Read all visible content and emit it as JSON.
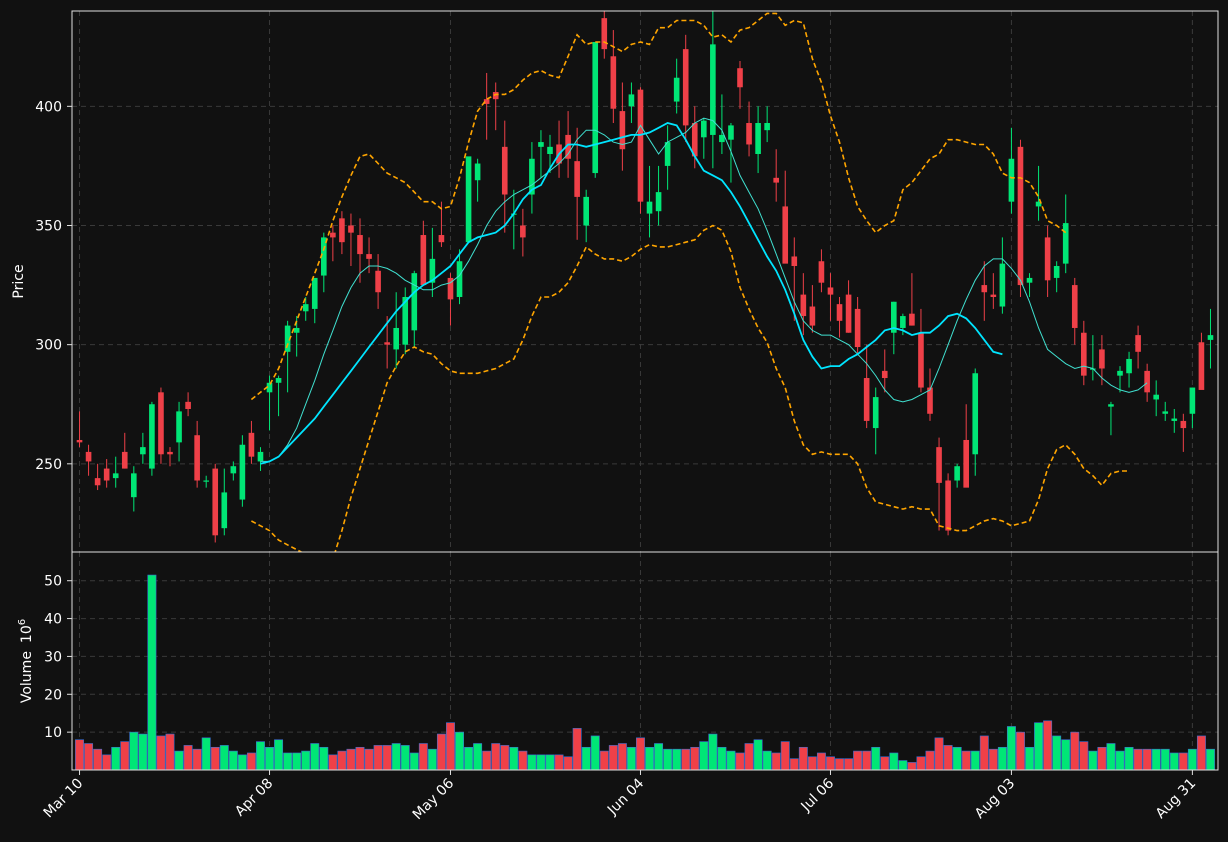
{
  "chart_data": {
    "type": "candlestick",
    "ylabel_price": "Price",
    "ylabel_volume": "Volume",
    "volume_exponent_label": "10",
    "volume_exponent_power": "6",
    "price_ylim": [
      213,
      440
    ],
    "price_yticks": [
      250,
      300,
      350,
      400
    ],
    "volume_ylim": [
      0,
      56
    ],
    "volume_yticks": [
      10,
      20,
      30,
      40,
      50
    ],
    "x_tick_labels": [
      {
        "label": "Mar 10",
        "index": 0
      },
      {
        "label": "Apr 08",
        "index": 21
      },
      {
        "label": "May 06",
        "index": 41
      },
      {
        "label": "Jun 04",
        "index": 62
      },
      {
        "label": "Jul 06",
        "index": 83
      },
      {
        "label": "Aug 03",
        "index": 103
      },
      {
        "label": "Aug 31",
        "index": 123
      }
    ],
    "grid": true,
    "colors": {
      "background": "#111111",
      "up": "#00e676",
      "down": "#ef4048",
      "ma_fast": "#40e0d0",
      "ma_slow": "#00e5ff",
      "bollinger": "#ffa500",
      "grid": "#3a3a3a",
      "axis": "#e0e0e0",
      "text": "#ffffff"
    },
    "series": [
      {
        "name": "",
        "kind": "ma_fast",
        "start": 20,
        "values": [
          251,
          251,
          253,
          258,
          265,
          275,
          285,
          296,
          306,
          316,
          324,
          330,
          333,
          333,
          332,
          330,
          327,
          325,
          323,
          323,
          325,
          326,
          329,
          335,
          342,
          350,
          356,
          360,
          363,
          365,
          367,
          370,
          373,
          376,
          380,
          386,
          390,
          390,
          388,
          385,
          384,
          385,
          392,
          386,
          380,
          385,
          387,
          389,
          393,
          395,
          394,
          390,
          381,
          371,
          364,
          357,
          348,
          338,
          328,
          318,
          310,
          306,
          304,
          304,
          302,
          300,
          296,
          292,
          287,
          281,
          277,
          276,
          277,
          279,
          281,
          290,
          300,
          310,
          319,
          327,
          333,
          336,
          336,
          332,
          327,
          318,
          307,
          298,
          295,
          292,
          290,
          291,
          290,
          286,
          283,
          281,
          280,
          281,
          284
        ]
      },
      {
        "name": "",
        "kind": "ma_slow",
        "start": 20,
        "values": [
          250,
          251,
          253,
          257,
          261,
          265,
          269,
          274,
          279,
          284,
          289,
          294,
          299,
          304,
          309,
          314,
          318,
          322,
          325,
          327,
          330,
          333,
          338,
          343,
          345,
          346,
          347,
          350,
          355,
          361,
          365,
          367,
          374,
          380,
          384,
          384,
          383,
          384,
          385,
          386,
          387,
          388,
          388,
          389,
          391,
          393,
          392,
          386,
          379,
          373,
          371,
          369,
          364,
          358,
          351,
          344,
          337,
          331,
          323,
          313,
          302,
          295,
          290,
          291,
          291,
          294,
          296,
          299,
          302,
          306,
          307,
          306,
          304,
          305,
          305,
          308,
          312,
          313,
          311,
          307,
          302,
          297,
          296
        ]
      },
      {
        "name": "",
        "kind": "bb_upper",
        "start": 19,
        "values": [
          277,
          280,
          283,
          290,
          300,
          310,
          320,
          330,
          340,
          352,
          362,
          371,
          379,
          380,
          376,
          372,
          370,
          368,
          364,
          360,
          360,
          357,
          358,
          370,
          385,
          398,
          403,
          405,
          405,
          407,
          411,
          414,
          415,
          413,
          412,
          421,
          430,
          426,
          427,
          427,
          425,
          423,
          426,
          427,
          426,
          433,
          433,
          436,
          436,
          436,
          434,
          429,
          430,
          427,
          432,
          433,
          436,
          439,
          439,
          434,
          436,
          435,
          420,
          410,
          396,
          385,
          370,
          358,
          352,
          347,
          350,
          352,
          365,
          368,
          373,
          378,
          380,
          386,
          386,
          385,
          384,
          384,
          380,
          372,
          370,
          370,
          368,
          362,
          352,
          350,
          347
        ]
      },
      {
        "name": "",
        "kind": "bb_lower",
        "start": 19,
        "values": [
          226,
          224,
          222,
          218,
          216,
          214,
          212,
          208,
          202,
          210,
          222,
          236,
          248,
          260,
          272,
          284,
          291,
          297,
          299,
          297,
          296,
          292,
          289,
          288,
          288,
          288,
          289,
          290,
          292,
          294,
          302,
          312,
          320,
          320,
          322,
          326,
          333,
          341,
          338,
          336,
          336,
          335,
          337,
          340,
          342,
          341,
          341,
          342,
          343,
          344,
          348,
          350,
          348,
          339,
          324,
          315,
          307,
          301,
          290,
          282,
          268,
          258,
          254,
          255,
          254,
          254,
          254,
          250,
          240,
          234,
          233,
          232,
          231,
          232,
          231,
          231,
          224,
          223,
          222,
          222,
          224,
          226,
          227,
          226,
          224,
          225,
          226,
          235,
          248,
          256,
          258,
          254,
          248,
          245,
          241,
          246,
          247,
          247
        ]
      }
    ],
    "ohlcv": [
      [
        260,
        272,
        257,
        259,
        8
      ],
      [
        255,
        258,
        245,
        251,
        7
      ],
      [
        244,
        250,
        239,
        241,
        5.5
      ],
      [
        248,
        252,
        240,
        243,
        4
      ],
      [
        244,
        253,
        240,
        246,
        6
      ],
      [
        255,
        263,
        248,
        248,
        7.5
      ],
      [
        236,
        249,
        230,
        246,
        10
      ],
      [
        254,
        263,
        250,
        257,
        9.5
      ],
      [
        248,
        276,
        245,
        275,
        51.5
      ],
      [
        280,
        282,
        250,
        254,
        9
      ],
      [
        255,
        257,
        249,
        254,
        9.5
      ],
      [
        259,
        276,
        251,
        272,
        5
      ],
      [
        276,
        280,
        270,
        273,
        6.5
      ],
      [
        262,
        268,
        240,
        243,
        5.5
      ],
      [
        243,
        245,
        240,
        243,
        8.5
      ],
      [
        248,
        250,
        217,
        220,
        6
      ],
      [
        223,
        248,
        220,
        238,
        6.5
      ],
      [
        246,
        251,
        243,
        249,
        5
      ],
      [
        235,
        262,
        232,
        258,
        4
      ],
      [
        263,
        268,
        250,
        253,
        4.5
      ],
      [
        251,
        257,
        247,
        255,
        7.5
      ],
      [
        280,
        287,
        264,
        284,
        6
      ],
      [
        284,
        287,
        270,
        286,
        8
      ],
      [
        297,
        310,
        280,
        308,
        4.5
      ],
      [
        305,
        312,
        295,
        307,
        4.5
      ],
      [
        314,
        320,
        310,
        317,
        5
      ],
      [
        315,
        325,
        309,
        328,
        7
      ],
      [
        329,
        347,
        322,
        345,
        6
      ],
      [
        347,
        350,
        335,
        345,
        4
      ],
      [
        353,
        356,
        338,
        343,
        5
      ],
      [
        350,
        355,
        333,
        347,
        5.5
      ],
      [
        346,
        353,
        326,
        338,
        6
      ],
      [
        338,
        345,
        330,
        336,
        5.5
      ],
      [
        331,
        338,
        315,
        322,
        6.5
      ],
      [
        301,
        312,
        290,
        300,
        6.5
      ],
      [
        298,
        322,
        290,
        307,
        7
      ],
      [
        300,
        324,
        296,
        320,
        6.5
      ],
      [
        306,
        331,
        299,
        330,
        4.5
      ],
      [
        346,
        352,
        338,
        325,
        7
      ],
      [
        326,
        349,
        320,
        336,
        5.5
      ],
      [
        346,
        360,
        341,
        343,
        9.5
      ],
      [
        328,
        330,
        308,
        319,
        12.5
      ],
      [
        320,
        340,
        317,
        335,
        10
      ],
      [
        343,
        360,
        344,
        379,
        6
      ],
      [
        369,
        378,
        360,
        376,
        7
      ],
      [
        403,
        414,
        386,
        401,
        5
      ],
      [
        406,
        410,
        390,
        403,
        7
      ],
      [
        383,
        394,
        347,
        363,
        6.5
      ],
      [
        355,
        365,
        340,
        355,
        6
      ],
      [
        350,
        357,
        337,
        345,
        5
      ],
      [
        363,
        385,
        355,
        378,
        4
      ],
      [
        383,
        390,
        370,
        385,
        4
      ],
      [
        380,
        388,
        372,
        383,
        4
      ],
      [
        384,
        394,
        370,
        376,
        4
      ],
      [
        388,
        398,
        370,
        378,
        3.5
      ],
      [
        377,
        391,
        344,
        362,
        11
      ],
      [
        350,
        365,
        343,
        362,
        6
      ],
      [
        372,
        410,
        370,
        427,
        9
      ],
      [
        437,
        440,
        420,
        424,
        5
      ],
      [
        421,
        432,
        393,
        399,
        6.5
      ],
      [
        398,
        410,
        373,
        382,
        7
      ],
      [
        400,
        410,
        393,
        405,
        6
      ],
      [
        407,
        408,
        355,
        360,
        8.5
      ],
      [
        355,
        375,
        345,
        360,
        6
      ],
      [
        356,
        375,
        350,
        364,
        7
      ],
      [
        375,
        392,
        365,
        385,
        5.5
      ],
      [
        402,
        420,
        397,
        412,
        5.5
      ],
      [
        424,
        430,
        385,
        392,
        5.5
      ],
      [
        393,
        400,
        374,
        379,
        6
      ],
      [
        387,
        395,
        378,
        394,
        7.5
      ],
      [
        388,
        440,
        374,
        426,
        9.5
      ],
      [
        385,
        405,
        380,
        388,
        6
      ],
      [
        386,
        393,
        368,
        392,
        5
      ],
      [
        416,
        419,
        399,
        408,
        4.5
      ],
      [
        393,
        402,
        379,
        384,
        7
      ],
      [
        380,
        400,
        372,
        393,
        8
      ],
      [
        390,
        400,
        385,
        393,
        5
      ],
      [
        370,
        382,
        360,
        368,
        4.5
      ],
      [
        358,
        373,
        342,
        334,
        7.5
      ],
      [
        337,
        345,
        310,
        333,
        3
      ],
      [
        321,
        330,
        304,
        312,
        6
      ],
      [
        316,
        325,
        305,
        308,
        3.5
      ],
      [
        335,
        340,
        322,
        326,
        4.5
      ],
      [
        324,
        330,
        310,
        321,
        3.5
      ],
      [
        317,
        320,
        303,
        310,
        3
      ],
      [
        321,
        327,
        305,
        305,
        3
      ],
      [
        315,
        320,
        296,
        299,
        5
      ],
      [
        286,
        300,
        265,
        268,
        5
      ],
      [
        265,
        282,
        254,
        278,
        6
      ],
      [
        289,
        298,
        280,
        286,
        3.5
      ],
      [
        305,
        318,
        296,
        318,
        4.5
      ],
      [
        307,
        313,
        304,
        312,
        2.5
      ],
      [
        313,
        330,
        308,
        308,
        2
      ],
      [
        305,
        315,
        280,
        282,
        3.5
      ],
      [
        282,
        290,
        268,
        271,
        5
      ],
      [
        257,
        261,
        222,
        242,
        8.5
      ],
      [
        243,
        246,
        220,
        222,
        6.5
      ],
      [
        243,
        250,
        240,
        249,
        6
      ],
      [
        260,
        275,
        248,
        240,
        5
      ],
      [
        254,
        290,
        245,
        288,
        5
      ],
      [
        325,
        335,
        310,
        322,
        9
      ],
      [
        321,
        330,
        315,
        320,
        5.5
      ],
      [
        316,
        345,
        313,
        334,
        6
      ],
      [
        360,
        391,
        355,
        378,
        11.5
      ],
      [
        383,
        386,
        320,
        325,
        10
      ],
      [
        326,
        330,
        320,
        328,
        6
      ],
      [
        358,
        375,
        352,
        360,
        12.5
      ],
      [
        345,
        350,
        320,
        327,
        13
      ],
      [
        328,
        335,
        322,
        333,
        9
      ],
      [
        334,
        363,
        330,
        351,
        8
      ],
      [
        325,
        328,
        300,
        307,
        10
      ],
      [
        305,
        310,
        283,
        287,
        7.5
      ],
      [
        290,
        304,
        285,
        290,
        5
      ],
      [
        298,
        304,
        283,
        290,
        6
      ],
      [
        274,
        276,
        262,
        275,
        7
      ],
      [
        287,
        291,
        280,
        289,
        5
      ],
      [
        288,
        297,
        282,
        294,
        6
      ],
      [
        304,
        308,
        290,
        297,
        5.5
      ],
      [
        289,
        292,
        276,
        280,
        5.5
      ],
      [
        277,
        285,
        270,
        279,
        5.5
      ],
      [
        271,
        276,
        268,
        272,
        5.5
      ],
      [
        268,
        273,
        263,
        269,
        4.5
      ],
      [
        268,
        271,
        255,
        265,
        4.5
      ],
      [
        271,
        282,
        265,
        282,
        5.5
      ],
      [
        301,
        305,
        290,
        281,
        9
      ],
      [
        302,
        315,
        290,
        304,
        5.5
      ]
    ]
  }
}
